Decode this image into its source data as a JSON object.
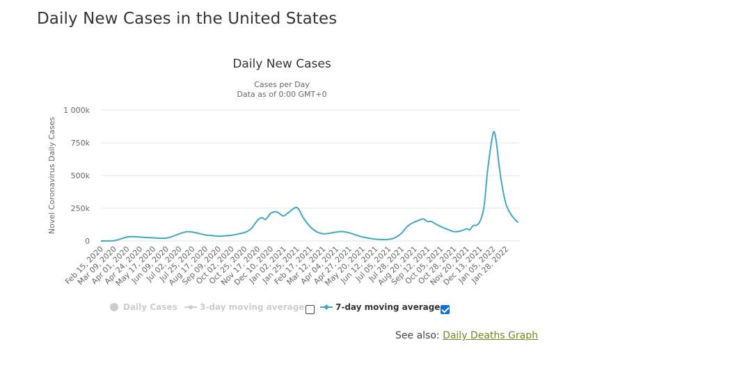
{
  "page": {
    "title": "Daily New Cases in the United States",
    "see_also_label": "See also:",
    "see_also_link": "Daily Deaths Graph"
  },
  "legend": [
    {
      "label": "Daily Cases",
      "visible": false,
      "checked": null
    },
    {
      "label": "3-day moving average",
      "visible": false,
      "checked": false
    },
    {
      "label": "7-day moving average",
      "visible": true,
      "checked": true
    }
  ],
  "colors": {
    "series": "#3fa7c4",
    "grid": "#e6e6e6",
    "axis_text": "#666666",
    "legend_hidden": "#cccccc",
    "link": "#6e8a1f",
    "checkbox_on": "#0b6fd8"
  },
  "chart_data": {
    "type": "line",
    "title": "Daily New Cases",
    "subtitle_lines": [
      "Cases per Day",
      "Data as of 0:00 GMT+0"
    ],
    "xlabel": "",
    "ylabel": "Novel Coronavirus Daily Cases",
    "ylim": [
      0,
      1000000
    ],
    "y_ticks": [
      0,
      250000,
      500000,
      750000,
      1000000
    ],
    "y_tick_labels": [
      "0",
      "250k",
      "500k",
      "750k",
      "1 000k"
    ],
    "x_domain": [
      "2020-02-15",
      "2022-02-20"
    ],
    "x_tick_labels": [
      "Feb 15, 2020",
      "Mar 09, 2020",
      "Apr 01, 2020",
      "Apr 24, 2020",
      "May 17, 2020",
      "Jun 09, 2020",
      "Jul 02, 2020",
      "Jul 25, 2020",
      "Aug 17, 2020",
      "Sep 09, 2020",
      "Oct 02, 2020",
      "Oct 25, 2020",
      "Nov 17, 2020",
      "Dec 10, 2020",
      "Jan 02, 2021",
      "Jan 25, 2021",
      "Feb 17, 2021",
      "Mar 12, 2021",
      "Apr 04, 2021",
      "Apr 27, 2021",
      "May 20, 2021",
      "Jun 12, 2021",
      "Jul 05, 2021",
      "Jul 28, 2021",
      "Aug 20, 2021",
      "Sep 12, 2021",
      "Oct 05, 2021",
      "Oct 28, 2021",
      "Nov 20, 2021",
      "Dec 13, 2021",
      "Jan 05, 2022",
      "Jan 28, 2022"
    ],
    "grid": "horizontal",
    "legend_position": "bottom",
    "series": [
      {
        "name": "7-day moving average",
        "x": [
          "2020-02-15",
          "2020-03-09",
          "2020-03-20",
          "2020-04-01",
          "2020-04-10",
          "2020-04-24",
          "2020-05-05",
          "2020-05-17",
          "2020-05-28",
          "2020-06-09",
          "2020-06-20",
          "2020-07-02",
          "2020-07-15",
          "2020-07-25",
          "2020-08-05",
          "2020-08-17",
          "2020-08-28",
          "2020-09-09",
          "2020-09-15",
          "2020-10-02",
          "2020-10-15",
          "2020-10-25",
          "2020-11-05",
          "2020-11-17",
          "2020-11-24",
          "2020-12-01",
          "2020-12-10",
          "2020-12-20",
          "2020-12-28",
          "2021-01-02",
          "2021-01-11",
          "2021-01-25",
          "2021-02-05",
          "2021-02-17",
          "2021-02-28",
          "2021-03-12",
          "2021-03-25",
          "2021-04-04",
          "2021-04-15",
          "2021-04-27",
          "2021-05-08",
          "2021-05-20",
          "2021-06-01",
          "2021-06-12",
          "2021-06-24",
          "2021-07-05",
          "2021-07-15",
          "2021-07-28",
          "2021-08-08",
          "2021-08-20",
          "2021-09-01",
          "2021-09-05",
          "2021-09-12",
          "2021-09-18",
          "2021-09-24",
          "2021-10-05",
          "2021-10-16",
          "2021-10-28",
          "2021-11-08",
          "2021-11-20",
          "2021-11-25",
          "2021-12-01",
          "2021-12-07",
          "2021-12-13",
          "2021-12-20",
          "2021-12-27",
          "2022-01-05",
          "2022-01-10",
          "2022-01-15",
          "2022-01-21",
          "2022-01-28",
          "2022-02-06",
          "2022-02-18"
        ],
        "values": [
          0,
          2000,
          15000,
          30000,
          33000,
          30000,
          26000,
          24000,
          21000,
          22000,
          35000,
          55000,
          70000,
          68000,
          58000,
          46000,
          42000,
          36000,
          38000,
          44000,
          55000,
          65000,
          92000,
          160000,
          178000,
          165000,
          212000,
          222000,
          200000,
          192000,
          220000,
          255000,
          178000,
          110000,
          72000,
          55000,
          60000,
          68000,
          72000,
          62000,
          47000,
          31000,
          21000,
          14000,
          11000,
          13000,
          22000,
          60000,
          115000,
          145000,
          165000,
          168000,
          148000,
          150000,
          135000,
          110000,
          90000,
          72000,
          75000,
          93000,
          85000,
          118000,
          120000,
          150000,
          260000,
          560000,
          820000,
          780000,
          600000,
          420000,
          280000,
          200000,
          140000
        ]
      }
    ]
  }
}
